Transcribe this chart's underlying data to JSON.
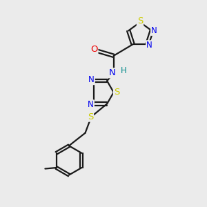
{
  "bg_color": "#ebebeb",
  "bond_color": "#1a1a1a",
  "atom_colors": {
    "S": "#cccc00",
    "N": "#0000ee",
    "O": "#ee0000",
    "H": "#008888",
    "C": "#1a1a1a"
  },
  "font_size": 8.5,
  "line_width": 1.6,
  "figsize": [
    3.0,
    3.0
  ],
  "dpi": 100
}
